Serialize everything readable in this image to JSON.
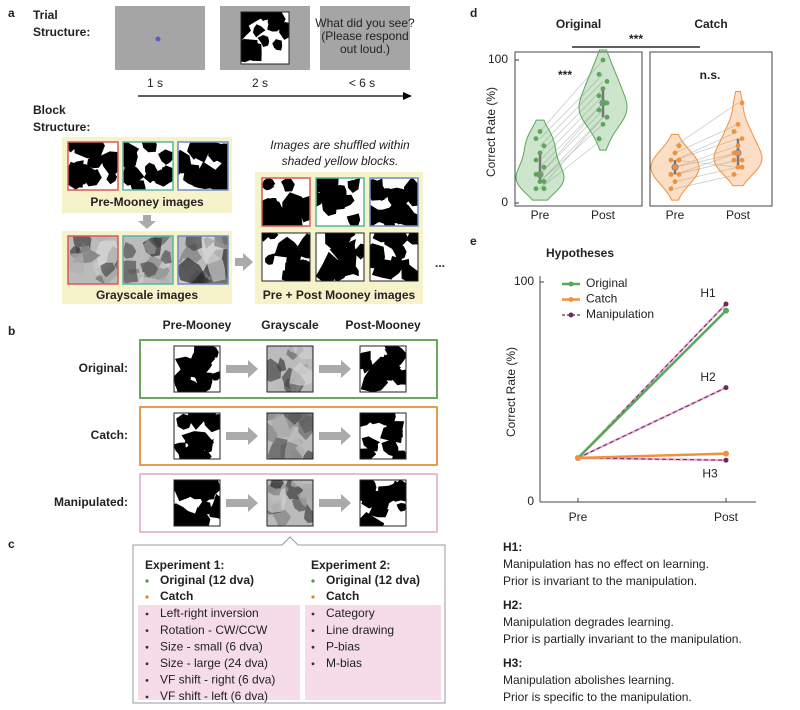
{
  "panel_a": {
    "letter": "a",
    "trial_title": [
      "Trial",
      "Structure:"
    ],
    "screen_text": [
      "What did you see?",
      "(Please respond",
      "out loud.)"
    ],
    "durations": [
      "1 s",
      "2 s",
      "< 6 s"
    ],
    "block_title": [
      "Block",
      "Structure:"
    ],
    "blocks": [
      "Pre-Mooney images",
      "Grayscale images",
      "Pre + Post Mooney images"
    ],
    "note": [
      "Images are shuffled within",
      "shaded yellow blocks."
    ],
    "ellipsis": "..."
  },
  "panel_b": {
    "letter": "b",
    "columns": [
      "Pre-Mooney",
      "Grayscale",
      "Post-Mooney"
    ],
    "rows": [
      {
        "label": "Original:",
        "color": "#5a9e4f"
      },
      {
        "label": "Catch:",
        "color": "#e8923a"
      },
      {
        "label": "Manipulated:",
        "color": "#e2b6d4"
      }
    ]
  },
  "panel_c": {
    "letter": "c",
    "experiments": [
      {
        "title": "Experiment 1:",
        "conditions": [
          {
            "text": "Original (12 dva)",
            "color": "#4e9a45"
          },
          {
            "text": "Catch",
            "color": "#ec7f23"
          }
        ],
        "manipulations": [
          "Left-right inversion",
          "Rotation - CW/CCW",
          "Size - small (6 dva)",
          "Size - large (24 dva)",
          "VF shift - right (6 dva)",
          "VF shift - left (6 dva)"
        ]
      },
      {
        "title": "Experiment 2:",
        "conditions": [
          {
            "text": "Original (12 dva)",
            "color": "#4e9a45"
          },
          {
            "text": "Catch",
            "color": "#ec7f23"
          }
        ],
        "manipulations": [
          "Category",
          "Line drawing",
          "P-bias",
          "M-bias"
        ]
      }
    ]
  },
  "chart_data": [
    {
      "type": "violin",
      "panel_label": "d",
      "categories": [
        "Pre",
        "Post"
      ],
      "ylim": [
        0,
        100
      ],
      "yticks": [
        0,
        100
      ],
      "ylabel": "Correct Rate (%)",
      "between_significance": "***",
      "series": [
        {
          "name": "Original",
          "color": "#5aa65a",
          "significance": "***",
          "values": [
            [
              10,
              15,
              15,
              20,
              20,
              25,
              30,
              35,
              40,
              45,
              50,
              10
            ],
            [
              45,
              55,
              60,
              65,
              70,
              70,
              75,
              80,
              85,
              90,
              100,
              60
            ]
          ]
        },
        {
          "name": "Catch",
          "color": "#f0913f",
          "significance": "n.s.",
          "values": [
            [
              10,
              15,
              20,
              20,
              25,
              30,
              30,
              35,
              40,
              20,
              25,
              30
            ],
            [
              20,
              25,
              30,
              35,
              40,
              45,
              50,
              55,
              70,
              30,
              35,
              25
            ]
          ]
        }
      ]
    },
    {
      "type": "line",
      "panel_label": "e",
      "title": "Hypotheses",
      "categories": [
        "Pre",
        "Post"
      ],
      "ylim": [
        0,
        100
      ],
      "yticks": [
        0,
        100
      ],
      "ylabel": "Correct Rate (%)",
      "series": [
        {
          "name": "Original",
          "color": "#5aa65a",
          "values": [
            20,
            87
          ]
        },
        {
          "name": "Catch",
          "color": "#f0913f",
          "values": [
            20,
            22
          ]
        }
      ],
      "manipulation": {
        "name": "Manipulation",
        "color": "#6b2a5e",
        "hypotheses": [
          {
            "label": "H1",
            "values": [
              20,
              90
            ]
          },
          {
            "label": "H2",
            "values": [
              20,
              52
            ]
          },
          {
            "label": "H3",
            "values": [
              20,
              19
            ]
          }
        ]
      }
    }
  ],
  "hypothesis_text": [
    {
      "label": "H1:",
      "lines": [
        "Manipulation has no effect on learning.",
        "Prior is invariant to the manipulation."
      ]
    },
    {
      "label": "H2:",
      "lines": [
        "Manipulation degrades learning.",
        "Prior is partially invariant to the manipulation."
      ]
    },
    {
      "label": "H3:",
      "lines": [
        "Manipulation abolishes learning.",
        "Prior is specific to the manipulation."
      ]
    }
  ]
}
